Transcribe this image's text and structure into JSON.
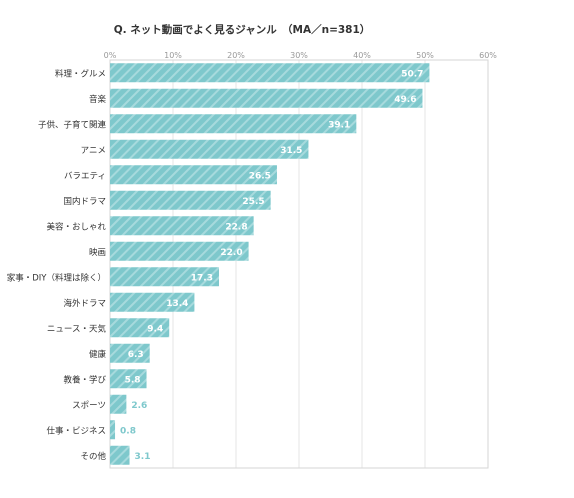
{
  "chart_data": {
    "type": "bar",
    "orientation": "horizontal",
    "title": "Q. ネット動画でよく見るジャンル　（MA／n=381）",
    "categories": [
      "料理・グルメ",
      "音楽",
      "子供、子育て関連",
      "アニメ",
      "バラエティ",
      "国内ドラマ",
      "美容・おしゃれ",
      "映画",
      "家事・DIY（料理は除く）",
      "海外ドラマ",
      "ニュース・天気",
      "健康",
      "教養・学び",
      "スポーツ",
      "仕事・ビジネス",
      "その他"
    ],
    "values": [
      50.7,
      49.6,
      39.1,
      31.5,
      26.5,
      25.5,
      22.8,
      22.0,
      17.3,
      13.4,
      9.4,
      6.3,
      5.8,
      2.6,
      0.8,
      3.1
    ],
    "value_labels": [
      "50.7",
      "49.6",
      "39.1",
      "31.5",
      "26.5",
      "25.5",
      "22.8",
      "22.0",
      "17.3",
      "13.4",
      "9.4",
      "6.3",
      "5.8",
      "2.6",
      "0.8",
      "3.1"
    ],
    "xlim": [
      0,
      60
    ],
    "x_ticks": [
      "0%",
      "10%",
      "20%",
      "30%",
      "40%",
      "50%",
      "60%"
    ],
    "grid": true,
    "legend": "none",
    "colors": {
      "bar": "#7ec8cc",
      "bar_stripe": "#a7dadd",
      "label_inside": "#ffffff",
      "label_outside": "#7ec8cc",
      "text": "#333333",
      "tick": "#999999",
      "grid": "#e6e6e6"
    }
  }
}
